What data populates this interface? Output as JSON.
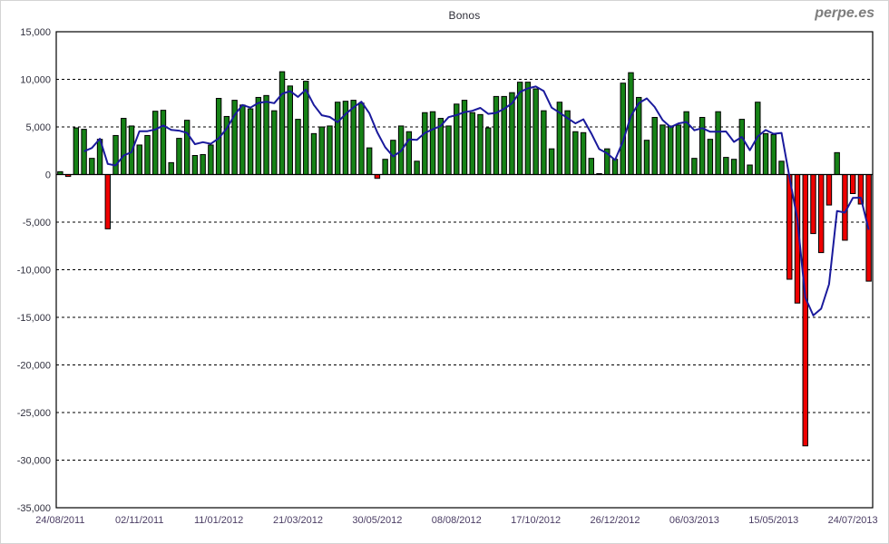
{
  "page": {
    "title": "Bonos",
    "watermark": "perpe.es"
  },
  "chart_data": {
    "type": "bar",
    "title": "Bonos",
    "subtitle": "",
    "xlabel": "",
    "ylabel": "",
    "legend": "none",
    "grid": "horizontal dashed lines every 5,000",
    "frequency": "weekly",
    "x_tick_every": 10,
    "x_tick_labels": [
      "24/08/2011",
      "02/11/2011",
      "11/01/2012",
      "21/03/2012",
      "30/05/2012",
      "08/08/2012",
      "17/10/2012",
      "26/12/2012",
      "06/03/2013",
      "15/05/2013",
      "24/07/2013"
    ],
    "y_axis": {
      "min": -35000,
      "max": 15000,
      "step": 5000,
      "tick_labels": [
        "15,000",
        "10,000",
        "5,000",
        "0",
        "-5,000",
        "-10,000",
        "-15,000",
        "-20,000",
        "-25,000",
        "-30,000",
        "-35,000"
      ]
    },
    "values": [
      300,
      -200,
      4900,
      4750,
      1700,
      3700,
      -5700,
      4100,
      5900,
      5100,
      3100,
      4100,
      6650,
      6750,
      1250,
      3800,
      5700,
      2000,
      2100,
      3100,
      8000,
      6100,
      7800,
      7300,
      6900,
      8100,
      8300,
      6700,
      10800,
      9300,
      5800,
      9800,
      4300,
      5000,
      5100,
      7600,
      7700,
      7800,
      7500,
      2800,
      -400,
      1600,
      3600,
      5100,
      4500,
      1400,
      6500,
      6600,
      5900,
      5100,
      7400,
      7800,
      6500,
      6300,
      4900,
      8200,
      8200,
      8600,
      9700,
      9700,
      9000,
      6700,
      2700,
      7600,
      6700,
      4500,
      4400,
      1700,
      100,
      2700,
      1600,
      9600,
      10700,
      8100,
      3600,
      6000,
      5200,
      5100,
      5200,
      6600,
      1700,
      6000,
      3700,
      6600,
      1800,
      1600,
      5800,
      1000,
      7600,
      4300,
      4200,
      1400,
      -11000,
      -13500,
      -28500,
      -6200,
      -8200,
      -3200,
      2300,
      -6900,
      -2000,
      -3100,
      -11200
    ],
    "line": {
      "type": "moving_average",
      "window": 4,
      "color": "#1a1a9c",
      "width": 2
    },
    "colors": {
      "positive_bar": "#168216",
      "negative_bar": "#ee0000",
      "bar_outline": "#000000",
      "grid": "#000000",
      "axis": "#000000",
      "y_label": "#30303e",
      "x_label": "#4a3c63"
    }
  }
}
